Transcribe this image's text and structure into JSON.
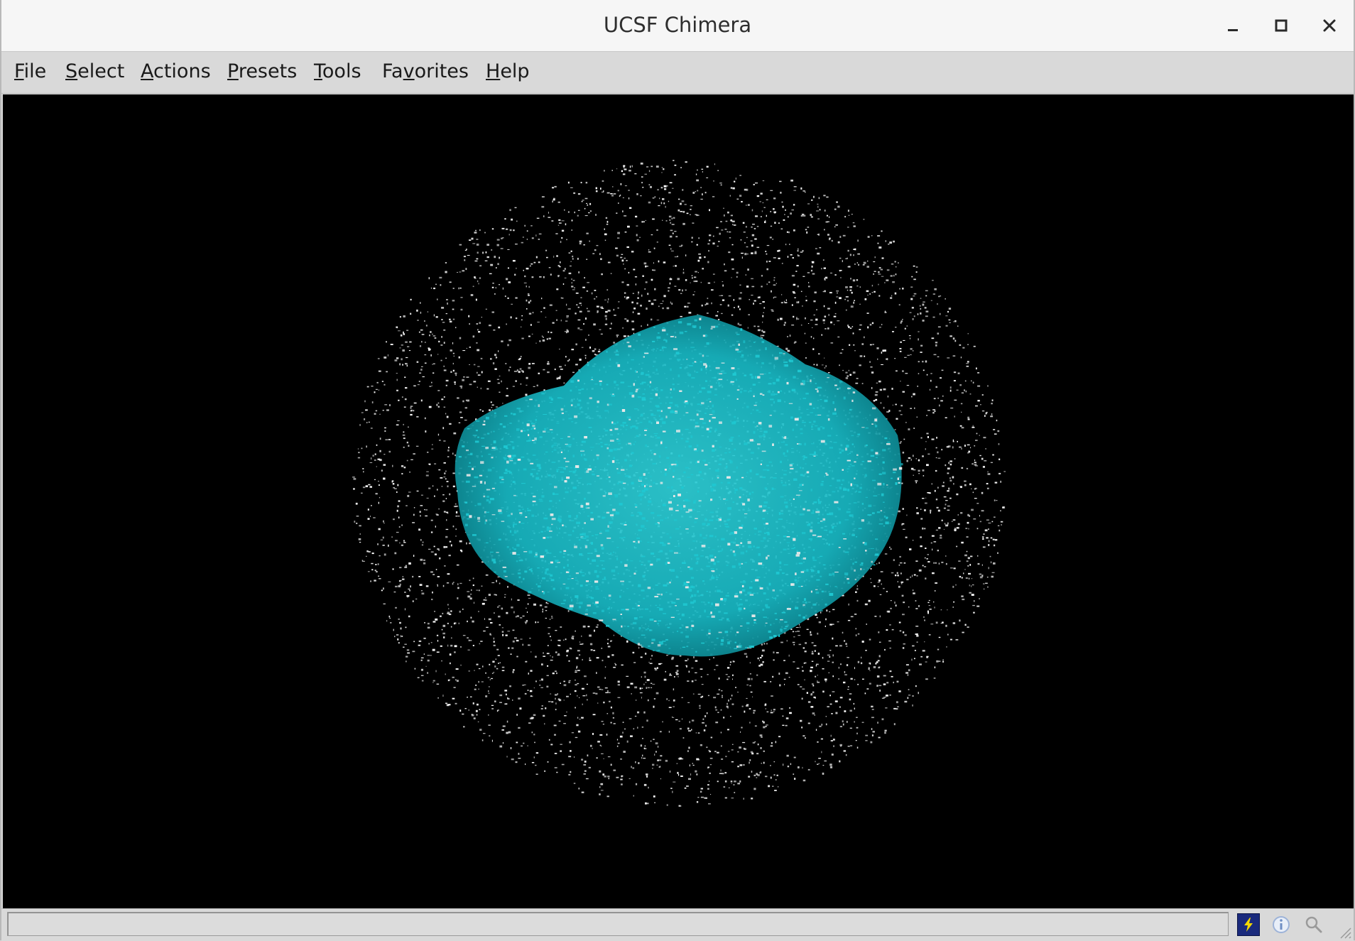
{
  "window": {
    "title": "UCSF Chimera",
    "controls": {
      "minimize": "minimize-icon",
      "maximize": "maximize-icon",
      "close": "close-icon"
    }
  },
  "menubar": {
    "items": [
      {
        "label": "File",
        "mnemonic_index": 0
      },
      {
        "label": "Select",
        "mnemonic_index": 0
      },
      {
        "label": "Actions",
        "mnemonic_index": 0
      },
      {
        "label": "Presets",
        "mnemonic_index": 0
      },
      {
        "label": "Tools",
        "mnemonic_index": 0
      },
      {
        "label": "Favorites",
        "mnemonic_index": 2
      },
      {
        "label": "Help",
        "mnemonic_index": 0
      }
    ]
  },
  "viewport": {
    "background": "#000000",
    "surface_colors": {
      "primary": "#1fc8d2",
      "secondary": "#e8e8e8",
      "noise": "#ffffff"
    }
  },
  "statusbar": {
    "message": "",
    "icons": [
      "lightning-icon",
      "info-icon",
      "search-icon"
    ]
  }
}
